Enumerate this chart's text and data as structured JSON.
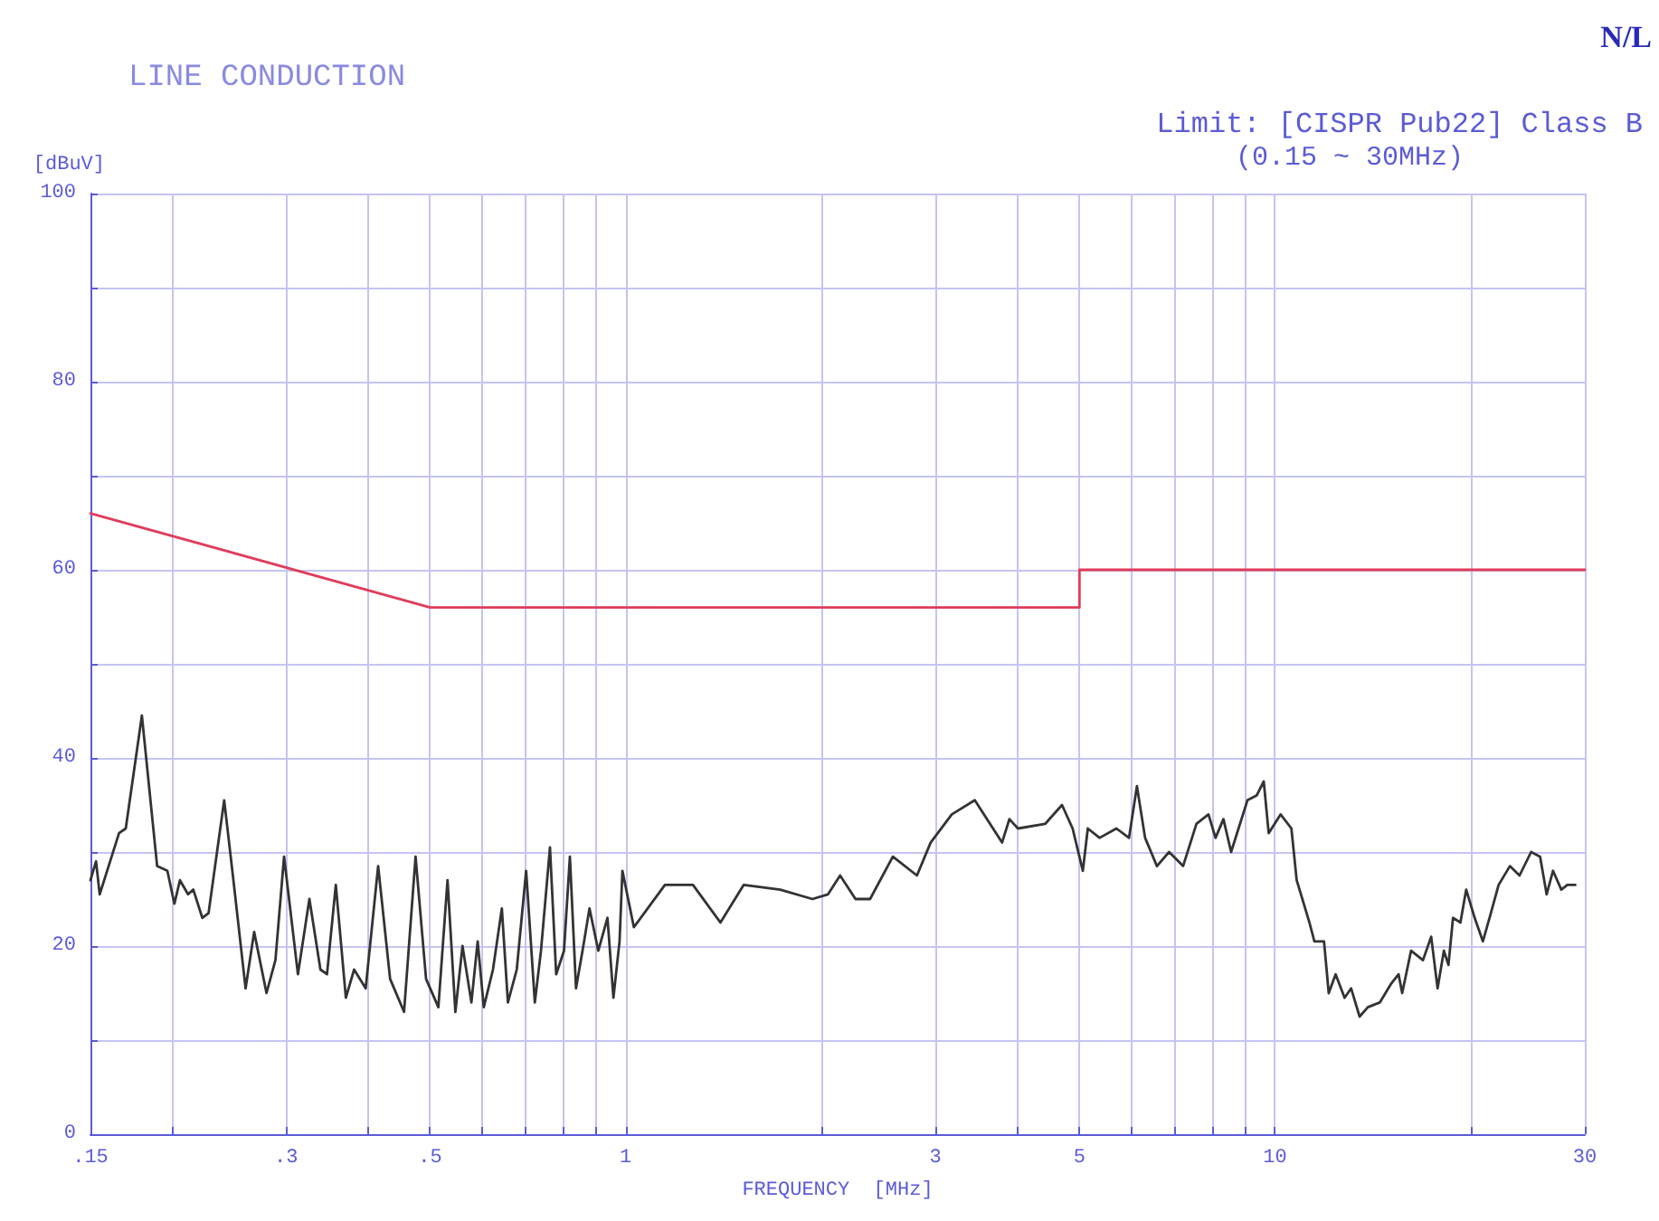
{
  "chart_data": {
    "type": "line",
    "title": "LINE CONDUCTION",
    "subtitle": "Limit: [CISPR Pub22] Class B",
    "annotations": [
      "(0.15 ~ 30MHz)",
      "N/L"
    ],
    "xlabel": "FREQUENCY  [MHz]",
    "ylabel": "[dBuV]",
    "log": "x",
    "grid": true,
    "marker": "none",
    "line_style": "solid",
    "xlim": [
      0.15,
      30
    ],
    "ylim": [
      0,
      100
    ],
    "xticks": [
      {
        "value": 0.15,
        "label": ".15"
      },
      {
        "value": 0.2,
        "label": null
      },
      {
        "value": 0.3,
        "label": ".3"
      },
      {
        "value": 0.4,
        "label": null
      },
      {
        "value": 0.5,
        "label": ".5"
      },
      {
        "value": 0.6,
        "label": null
      },
      {
        "value": 0.7,
        "label": null
      },
      {
        "value": 0.8,
        "label": null
      },
      {
        "value": 0.9,
        "label": null
      },
      1,
      {
        "value": 2,
        "label": null
      },
      3,
      {
        "value": 4,
        "label": null
      },
      5,
      {
        "value": 6,
        "label": null
      },
      {
        "value": 7,
        "label": null
      },
      {
        "value": 8,
        "label": null
      },
      {
        "value": 9,
        "label": null
      },
      10,
      {
        "value": 20,
        "label": null
      },
      30
    ],
    "yticks": [
      0,
      {
        "value": 10,
        "label": null
      },
      20,
      {
        "value": 30,
        "label": null
      },
      40,
      {
        "value": 50,
        "label": null
      },
      60,
      {
        "value": 70,
        "label": null
      },
      80,
      {
        "value": 90,
        "label": null
      },
      100
    ],
    "series": [
      {
        "color": "#e03c5a",
        "x": [
          0.15,
          0.5,
          5,
          5,
          30
        ],
        "values": [
          66,
          56,
          56,
          60,
          60
        ]
      },
      {
        "color": "#333333",
        "x": [
          0.15,
          0.153,
          0.155,
          0.166,
          0.17,
          0.18,
          0.19,
          0.197,
          0.202,
          0.206,
          0.212,
          0.216,
          0.223,
          0.228,
          0.241,
          0.249,
          0.26,
          0.268,
          0.28,
          0.289,
          0.298,
          0.313,
          0.326,
          0.339,
          0.347,
          0.358,
          0.371,
          0.382,
          0.398,
          0.416,
          0.434,
          0.456,
          0.475,
          0.493,
          0.515,
          0.532,
          0.547,
          0.561,
          0.579,
          0.592,
          0.605,
          0.625,
          0.645,
          0.659,
          0.68,
          0.703,
          0.725,
          0.741,
          0.765,
          0.782,
          0.804,
          0.821,
          0.839,
          0.861,
          0.88,
          0.908,
          0.938,
          0.958,
          0.979,
          0.989,
          1.03,
          1.15,
          1.27,
          1.4,
          1.52,
          1.73,
          1.94,
          2.05,
          2.14,
          2.26,
          2.38,
          2.58,
          2.81,
          2.95,
          3.18,
          3.45,
          3.8,
          3.9,
          4.02,
          4.43,
          4.7,
          4.88,
          5.06,
          5.15,
          5.37,
          5.7,
          5.96,
          6.13,
          6.31,
          6.58,
          6.87,
          7.22,
          7.57,
          7.9,
          8.1,
          8.33,
          8.56,
          9.07,
          9.37,
          9.61,
          9.78,
          10.2,
          10.6,
          10.8,
          11.3,
          11.5,
          11.9,
          12.1,
          12.4,
          12.8,
          13.1,
          13.5,
          13.9,
          14.5,
          15.1,
          15.5,
          15.7,
          16.2,
          16.9,
          17.4,
          17.8,
          18.2,
          18.5,
          18.8,
          19.3,
          19.7,
          20.3,
          20.9,
          21.4,
          22.1,
          23,
          23.8,
          24.8,
          25.6,
          26.2,
          26.8,
          27.6,
          28.2,
          29
        ],
        "values": [
          27,
          29,
          25.5,
          32,
          32.5,
          44.5,
          28.5,
          28,
          24.5,
          27,
          25.5,
          26,
          23,
          23.5,
          35.5,
          27,
          15.5,
          21.5,
          15,
          18.5,
          29.5,
          17,
          25,
          17.5,
          17,
          26.5,
          14.5,
          17.5,
          15.5,
          28.5,
          16.5,
          13,
          29.5,
          16.5,
          13.5,
          27,
          13,
          20,
          14,
          20.5,
          13.5,
          17.5,
          24,
          14,
          17.5,
          28,
          14,
          19.5,
          30.5,
          17,
          19.5,
          29.5,
          15.5,
          20,
          24,
          19.5,
          23,
          14.5,
          20.5,
          28,
          22,
          26.5,
          26.5,
          22.5,
          26.5,
          26,
          25,
          25.5,
          27.5,
          25,
          25,
          29.5,
          27.5,
          31,
          34,
          35.5,
          31,
          33.5,
          32.5,
          33,
          35,
          32.5,
          28,
          32.5,
          31.5,
          32.5,
          31.5,
          37,
          31.5,
          28.5,
          30,
          28.5,
          33,
          34,
          31.5,
          33.5,
          30,
          35.5,
          36,
          37.5,
          32,
          34,
          32.5,
          27,
          22.5,
          20.5,
          20.5,
          15,
          17,
          14.5,
          15.5,
          12.5,
          13.5,
          14,
          16,
          17,
          15,
          19.5,
          18.5,
          21,
          15.5,
          19.5,
          18,
          23,
          22.5,
          26,
          23,
          20.5,
          23,
          26.5,
          28.5,
          27.5,
          30,
          29.5,
          25.5,
          28,
          26,
          26.5,
          26.5
        ]
      }
    ]
  }
}
